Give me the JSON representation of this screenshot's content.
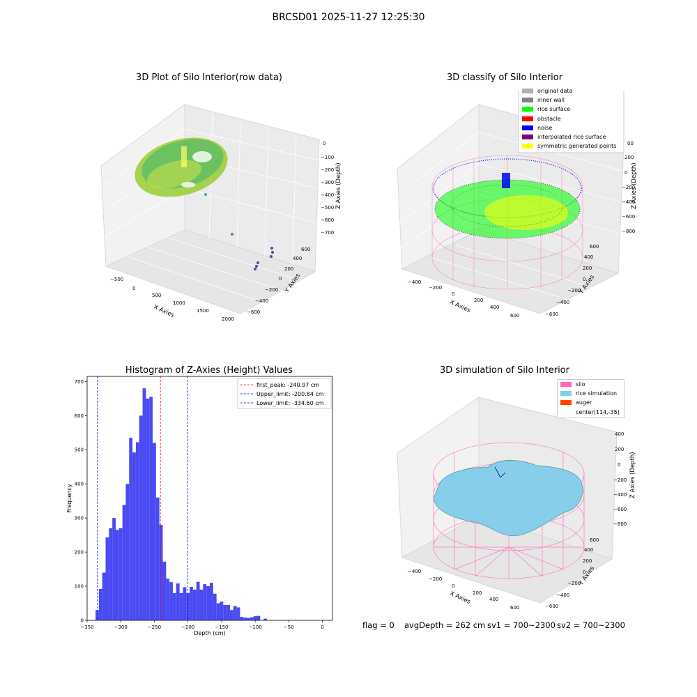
{
  "figure": {
    "suptitle": "BRCSD01 2025-11-27 12:25:30",
    "footer": {
      "flag": "flag = 0",
      "avg_depth": "avgDepth = 262 cm",
      "sv1": "sv1 = 700~2300",
      "sv2": "sv2 = 700~2300"
    }
  },
  "colors": {
    "hist_bar": "#4a4af4",
    "first_peak_line": "#ff0000",
    "limit_line": "#0000cc",
    "silo_pink": "#ff69b4",
    "rice_sim": "#87ceeb",
    "auger": "#ff4500",
    "rice_surface": "#00ff00",
    "noise": "#0000ff",
    "symmetric": "#ffff00"
  },
  "chart_data": [
    {
      "type": "scatter",
      "title": "3D Plot of Silo Interior(row data)",
      "xlabel": "X Axies",
      "ylabel": "Y Axies",
      "zlabel": "Z Axies (Depth)",
      "x_ticks": [
        "−500",
        "0",
        "500",
        "1000",
        "1500",
        "2000"
      ],
      "y_ticks": [
        "−600",
        "−400",
        "−200",
        "0",
        "200",
        "400",
        "600"
      ],
      "z_ticks": [
        "0",
        "−100",
        "−200",
        "−300",
        "−400",
        "−500",
        "−600",
        "−700"
      ]
    },
    {
      "type": "scatter",
      "title": "3D classify of Silo Interior",
      "xlabel": "X Axies",
      "ylabel": "Y Axies",
      "zlabel": "Z Axies (Depth)",
      "x_ticks": [
        "−400",
        "−200",
        "0",
        "200",
        "400",
        "600"
      ],
      "y_ticks": [
        "−600",
        "−400",
        "−200",
        "0",
        "200",
        "400",
        "600"
      ],
      "z_ticks": [
        "200",
        "0",
        "−200",
        "−400",
        "−600",
        "−800"
      ],
      "z_top_partial": "00",
      "legend": [
        {
          "label": "original data",
          "color": "#b0b0b0"
        },
        {
          "label": "inner wall",
          "color": "#808080"
        },
        {
          "label": "rice surface",
          "color": "#00ff00"
        },
        {
          "label": "obstacle",
          "color": "#ff0000"
        },
        {
          "label": "noise",
          "color": "#0000ff"
        },
        {
          "label": "interpolated rice surface",
          "color": "#800080"
        },
        {
          "label": "symmetric generated points",
          "color": "#ffff00"
        }
      ]
    },
    {
      "type": "bar",
      "title": "Histogram of Z-Axies (Height) Values",
      "xlabel": "Depth (cm)",
      "ylabel": "Frequency",
      "xlim": [
        -350,
        15
      ],
      "ylim": [
        0,
        715
      ],
      "x_ticks": [
        -350,
        -300,
        -250,
        -200,
        -150,
        -100,
        -50,
        0
      ],
      "y_ticks": [
        0,
        100,
        200,
        300,
        400,
        500,
        600,
        700
      ],
      "bin_width": 5.0,
      "bin_start": -337.5,
      "values": [
        30,
        92,
        140,
        243,
        270,
        300,
        265,
        270,
        338,
        400,
        535,
        492,
        522,
        600,
        680,
        650,
        655,
        520,
        360,
        280,
        172,
        122,
        112,
        80,
        108,
        80,
        97,
        80,
        98,
        90,
        113,
        90,
        106,
        100,
        110,
        78,
        50,
        55,
        45,
        45,
        30,
        42,
        38,
        10,
        8,
        7,
        9,
        12,
        13,
        0,
        5
      ],
      "vlines": [
        {
          "label": "first_peak: -240.97 cm",
          "x": -240.97,
          "color": "#ff0000"
        },
        {
          "label": "Upper_limit: -200.84 cm",
          "x": -200.84,
          "color": "#0000cc"
        },
        {
          "label": "Lower_limit: -334.60 cm",
          "x": -334.6,
          "color": "#0000cc"
        }
      ]
    },
    {
      "type": "area",
      "title": "3D simulation of Silo Interior",
      "xlabel": "X Axies",
      "ylabel": "Y Axies",
      "zlabel": "Z Axies (Depth)",
      "x_ticks": [
        "−400",
        "−200",
        "0",
        "200",
        "400",
        "600"
      ],
      "y_ticks": [
        "−600",
        "−400",
        "−200",
        "0",
        "200",
        "400",
        "600"
      ],
      "z_ticks": [
        "400",
        "200",
        "0",
        "−200",
        "−400",
        "−600",
        "−800"
      ],
      "legend": [
        {
          "label": "silo",
          "color": "#ff69b4"
        },
        {
          "label": "rice simulation",
          "color": "#87ceeb"
        },
        {
          "label": "auger",
          "color": "#ff4500"
        },
        {
          "label": "center(114,-35)",
          "color": ""
        }
      ]
    }
  ]
}
